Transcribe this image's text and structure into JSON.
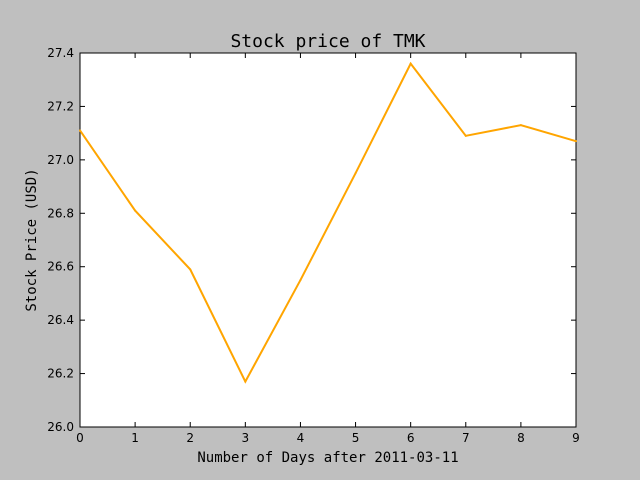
{
  "chart_data": {
    "type": "line",
    "title": "Stock price of TMK",
    "xlabel": "Number of Days after 2011-03-11",
    "ylabel": "Stock Price (USD)",
    "x": [
      0,
      1,
      2,
      3,
      4,
      5,
      6,
      7,
      8,
      9
    ],
    "series": [
      {
        "values": [
          27.11,
          26.81,
          26.59,
          26.17,
          26.55,
          26.95,
          27.36,
          27.09,
          27.13,
          27.07
        ],
        "color": "#ffa500"
      }
    ],
    "xlim": [
      0,
      9
    ],
    "ylim": [
      26.0,
      27.4
    ],
    "x_ticks": [
      "0",
      "1",
      "2",
      "3",
      "4",
      "5",
      "6",
      "7",
      "8",
      "9"
    ],
    "y_ticks": [
      "26.0",
      "26.2",
      "26.4",
      "26.6",
      "26.8",
      "27.0",
      "27.2",
      "27.4"
    ],
    "grid": false,
    "background_color": "#bfbfbf",
    "plot_background_color": "#ffffff"
  }
}
